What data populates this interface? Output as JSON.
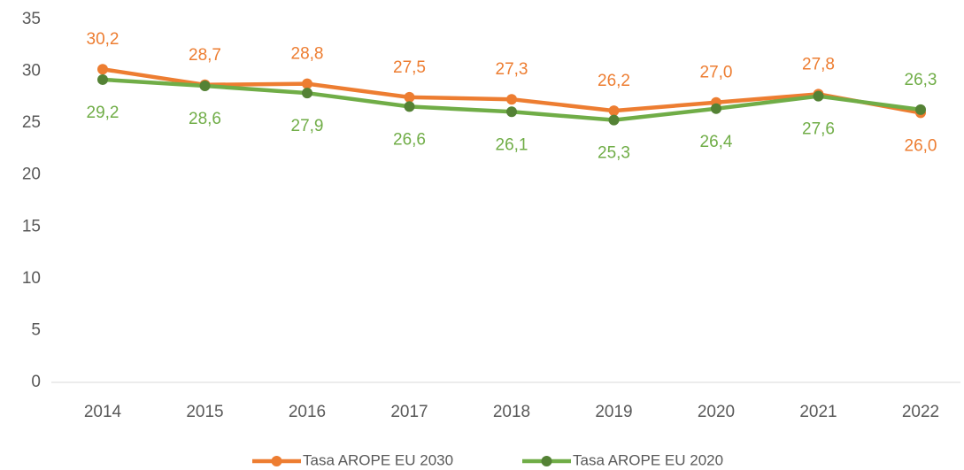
{
  "chart_data": {
    "type": "line",
    "categories": [
      "2014",
      "2015",
      "2016",
      "2017",
      "2018",
      "2019",
      "2020",
      "2021",
      "2022"
    ],
    "series": [
      {
        "name": "Tasa AROPE EU 2030",
        "color": "#ed7d31",
        "marker_color": "#ed7d31",
        "values": [
          30.2,
          28.7,
          28.8,
          27.5,
          27.3,
          26.2,
          27.0,
          27.8,
          26.0
        ],
        "value_labels": [
          "30,2",
          "28,7",
          "28,8",
          "27,5",
          "27,3",
          "26,2",
          "27,0",
          "27,8",
          "26,0"
        ]
      },
      {
        "name": "Tasa AROPE EU 2020",
        "color": "#70ad47",
        "marker_color": "#548235",
        "values": [
          29.2,
          28.6,
          27.9,
          26.6,
          26.1,
          25.3,
          26.4,
          27.6,
          26.3
        ],
        "value_labels": [
          "29,2",
          "28,6",
          "27,9",
          "26,6",
          "26,1",
          "25,3",
          "26,4",
          "27,6",
          "26,3"
        ]
      }
    ],
    "ylim": [
      0,
      35
    ],
    "yticks": [
      0,
      5,
      10,
      15,
      20,
      25,
      30,
      35
    ],
    "grid": false,
    "legend": "bottom"
  }
}
